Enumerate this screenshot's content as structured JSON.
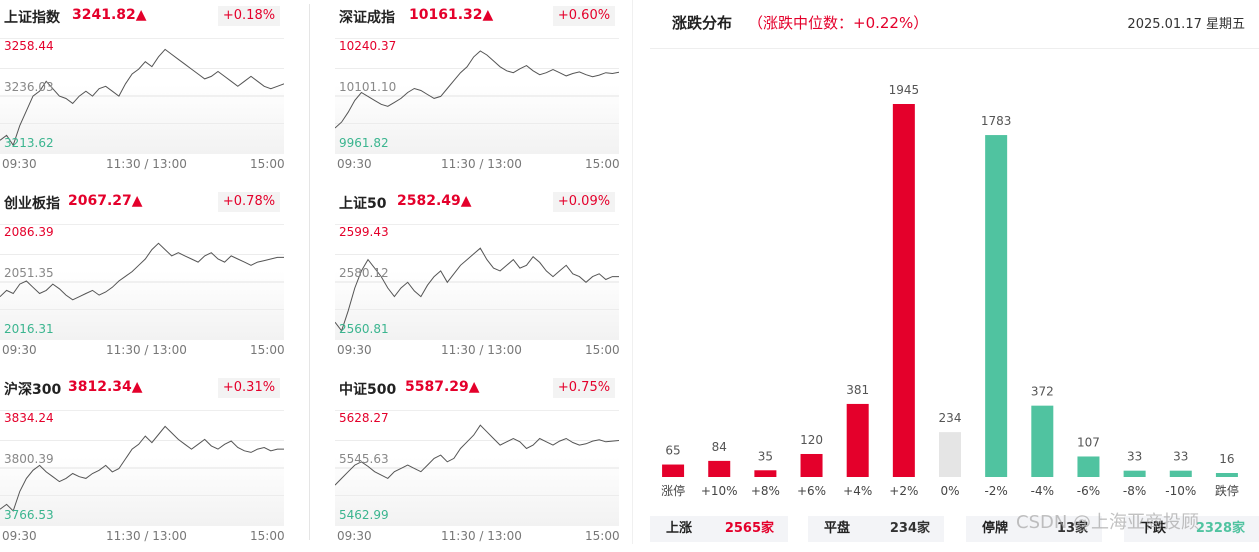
{
  "indices": [
    {
      "name": "上证指数",
      "value": "3241.82▲",
      "pct": "+0.18%",
      "high": "3258.44",
      "mid": "3236.03",
      "low": "3213.62",
      "series": [
        3218,
        3220,
        3216,
        3224,
        3230,
        3236,
        3238,
        3242,
        3239,
        3236,
        3235,
        3233,
        3236,
        3238,
        3236,
        3239,
        3240,
        3238,
        3236,
        3241,
        3245,
        3247,
        3250,
        3248,
        3252,
        3255,
        3253,
        3251,
        3249,
        3247,
        3245,
        3243,
        3244,
        3246,
        3244,
        3242,
        3240,
        3242,
        3244,
        3242,
        3240,
        3239,
        3240,
        3241
      ]
    },
    {
      "name": "深证成指",
      "value": "10161.32▲",
      "pct": "+0.60%",
      "high": "10240.37",
      "mid": "10101.10",
      "low": "9961.82",
      "series": [
        10020,
        10035,
        10060,
        10090,
        10110,
        10100,
        10090,
        10080,
        10075,
        10085,
        10095,
        10110,
        10120,
        10115,
        10105,
        10095,
        10100,
        10120,
        10140,
        10160,
        10175,
        10200,
        10215,
        10205,
        10190,
        10175,
        10165,
        10160,
        10170,
        10178,
        10165,
        10155,
        10160,
        10168,
        10160,
        10152,
        10158,
        10162,
        10155,
        10150,
        10154,
        10160,
        10158,
        10161
      ]
    },
    {
      "name": "创业板指",
      "value": "2067.27▲",
      "pct": "+0.78%",
      "high": "2086.39",
      "mid": "2051.35",
      "low": "2016.31",
      "series": [
        2042,
        2046,
        2044,
        2050,
        2052,
        2048,
        2044,
        2046,
        2050,
        2047,
        2043,
        2040,
        2042,
        2044,
        2046,
        2043,
        2045,
        2048,
        2052,
        2055,
        2058,
        2062,
        2066,
        2072,
        2076,
        2072,
        2068,
        2070,
        2068,
        2066,
        2064,
        2068,
        2070,
        2066,
        2064,
        2068,
        2066,
        2064,
        2062,
        2064,
        2065,
        2066,
        2067,
        2067
      ]
    },
    {
      "name": "上证50",
      "value": "2582.49▲",
      "pct": "+0.09%",
      "high": "2599.43",
      "mid": "2580.12",
      "low": "2560.81",
      "series": [
        2566,
        2563,
        2570,
        2578,
        2584,
        2588,
        2585,
        2582,
        2578,
        2575,
        2578,
        2580,
        2577,
        2575,
        2579,
        2582,
        2584,
        2580,
        2583,
        2586,
        2588,
        2590,
        2592,
        2588,
        2585,
        2584,
        2586,
        2588,
        2585,
        2586,
        2589,
        2587,
        2584,
        2582,
        2584,
        2586,
        2583,
        2582,
        2580,
        2582,
        2583,
        2581,
        2582,
        2582
      ]
    },
    {
      "name": "沪深300",
      "value": "3812.34▲",
      "pct": "+0.31%",
      "high": "3834.24",
      "mid": "3800.39",
      "low": "3766.53",
      "series": [
        3775,
        3778,
        3774,
        3786,
        3794,
        3799,
        3802,
        3798,
        3795,
        3792,
        3794,
        3797,
        3795,
        3794,
        3797,
        3799,
        3802,
        3798,
        3800,
        3806,
        3812,
        3815,
        3820,
        3816,
        3821,
        3826,
        3822,
        3818,
        3815,
        3812,
        3815,
        3818,
        3814,
        3812,
        3815,
        3817,
        3813,
        3811,
        3810,
        3812,
        3813,
        3811,
        3812,
        3812
      ]
    },
    {
      "name": "中证500",
      "value": "5587.29▲",
      "pct": "+0.75%",
      "high": "5628.27",
      "mid": "5545.63",
      "low": "5462.99",
      "series": [
        5520,
        5530,
        5540,
        5550,
        5555,
        5548,
        5540,
        5535,
        5530,
        5540,
        5545,
        5550,
        5545,
        5540,
        5550,
        5560,
        5565,
        5555,
        5560,
        5575,
        5585,
        5595,
        5610,
        5600,
        5590,
        5580,
        5585,
        5590,
        5585,
        5575,
        5580,
        5590,
        5585,
        5580,
        5586,
        5590,
        5584,
        5580,
        5582,
        5586,
        5588,
        5585,
        5586,
        5587
      ]
    }
  ],
  "time_ticks": [
    "09:30",
    "11:30 / 13:00",
    "15:00"
  ],
  "distribution": {
    "title": "涨跌分布",
    "subtitle": "（涨跌中位数：+0.22%）",
    "date": "2025.01.17 星期五",
    "colors": {
      "up": "#e4002b",
      "flat": "#e5e5e5",
      "down": "#50c3a0"
    },
    "chart_data": {
      "type": "bar",
      "categories": [
        "涨停",
        "+10%",
        "+8%",
        "+6%",
        "+4%",
        "+2%",
        "0%",
        "-2%",
        "-4%",
        "-6%",
        "-8%",
        "-10%",
        "跌停"
      ],
      "values": [
        65,
        84,
        35,
        120,
        381,
        1945,
        234,
        1783,
        372,
        107,
        33,
        33,
        16
      ],
      "color_group": [
        "up",
        "up",
        "up",
        "up",
        "up",
        "up",
        "flat",
        "down",
        "down",
        "down",
        "down",
        "down",
        "down"
      ]
    }
  },
  "footer": [
    {
      "key": "上涨",
      "value": "2565家",
      "color": "#e4002b"
    },
    {
      "key": "平盘",
      "value": "234家",
      "color": "#333333"
    },
    {
      "key": "停牌",
      "value": "13家",
      "color": "#333333"
    },
    {
      "key": "下跌",
      "value": "2328家",
      "color": "#50c3a0"
    }
  ],
  "watermark": "CSDN @上海亚商投顾"
}
